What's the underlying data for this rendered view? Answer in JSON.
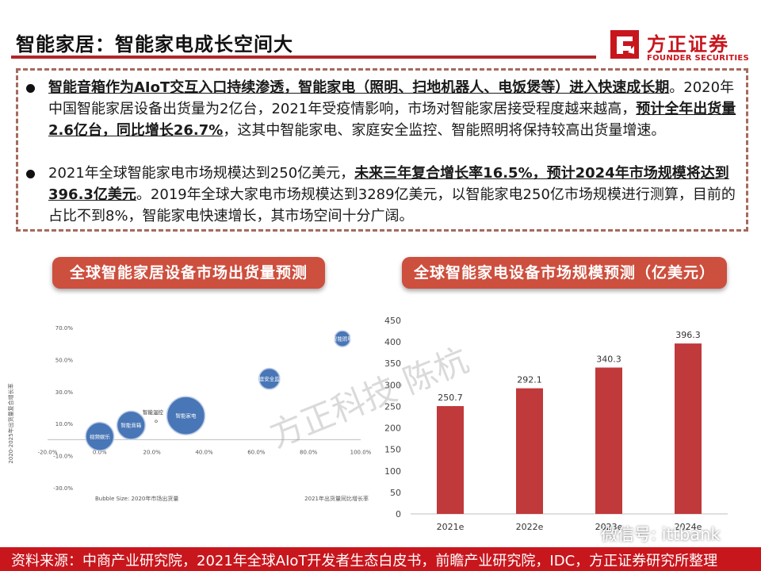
{
  "header": {
    "title": "智能家居：智能家电成长空间大",
    "logo_cn": "方正证券",
    "logo_en": "FOUNDER SECURITIES"
  },
  "colors": {
    "accent": "#c8161d",
    "pill": "#cd4f3e",
    "bar": "#c0393b",
    "bubble": "#3f6fb3"
  },
  "bullets": [
    {
      "parts": [
        {
          "text": "智能音箱作为AIoT交互入口持续渗透，智能家电（照明、扫地机器人、电饭煲等）进入快速成长期",
          "strong": true
        },
        {
          "text": "。2020年中国智能家居设备出货量为2亿台，2021年受疫情影响，市场对智能家居接受程度越来越高，",
          "strong": false
        },
        {
          "text": "预计全年出货量2.6亿台，同比增长26.7%",
          "strong": true
        },
        {
          "text": "，这其中智能家电、家庭安全监控、智能照明将保持较高出货量增速。",
          "strong": false
        }
      ]
    },
    {
      "parts": [
        {
          "text": "2021年全球智能家电市场规模达到250亿美元，",
          "strong": false
        },
        {
          "text": "未来三年复合增长率16.5%，预计2024年市场规模将达到396.3亿美元",
          "strong": true
        },
        {
          "text": "。2019年全球大家电市场规模达到3289亿美元，以智能家电250亿市场规模进行测算，目前的占比不到8%，智能家电快速增长，其市场空间十分广阔。",
          "strong": false
        }
      ]
    }
  ],
  "chart_titles": {
    "left": "全球智能家居设备市场出货量预测",
    "right": "全球智能家电设备市场规模预测（亿美元）"
  },
  "chart_data": [
    {
      "type": "scatter",
      "title": "全球智能家居设备市场出货量预测",
      "xlabel": "2021年出货量同比增长率",
      "ylabel": "2020-2025年出货量复合增长率",
      "size_note": "Bubble Size: 2020年市场出货量",
      "x_ticks": [
        "-20.0%",
        "0.0%",
        "20.0%",
        "40.0%",
        "60.0%",
        "80.0%",
        "100.0%"
      ],
      "y_ticks": [
        "70.0%",
        "50.0%",
        "30.0%",
        "10.0%",
        "-10.0%",
        "-30.0%"
      ],
      "xlim": [
        -20,
        100
      ],
      "ylim": [
        -30,
        70
      ],
      "points": [
        {
          "label": "视频娱乐",
          "x": 0,
          "y": 2,
          "size": 0.55
        },
        {
          "label": "智能音箱",
          "x": 12,
          "y": 9,
          "size": 0.55
        },
        {
          "label": "智能家电",
          "x": 33,
          "y": 15,
          "size": 1.0
        },
        {
          "label": "家庭安全监控",
          "x": 65,
          "y": 38,
          "size": 0.3
        },
        {
          "label": "智能照明",
          "x": 93,
          "y": 63,
          "size": 0.12
        }
      ],
      "extra_labels": [
        {
          "label": "智能温控",
          "x": 21,
          "y": 16
        }
      ]
    },
    {
      "type": "bar",
      "title": "全球智能家电设备市场规模预测（亿美元）",
      "categories": [
        "2021e",
        "2022e",
        "2023e",
        "2024e"
      ],
      "values": [
        250.7,
        292.1,
        340.3,
        396.3
      ],
      "ylim": [
        0,
        450
      ],
      "y_ticks": [
        0,
        50,
        100,
        150,
        200,
        250,
        300,
        350,
        400,
        450
      ]
    }
  ],
  "watermark": {
    "text": "方正科技·陈杭",
    "wechat": "微信号: ittbank"
  },
  "footer": {
    "source": "资料来源：中商产业研究院，2021年全球AIoT开发者生态白皮书，前瞻产业研究院，IDC，方正证券研究所整理"
  }
}
